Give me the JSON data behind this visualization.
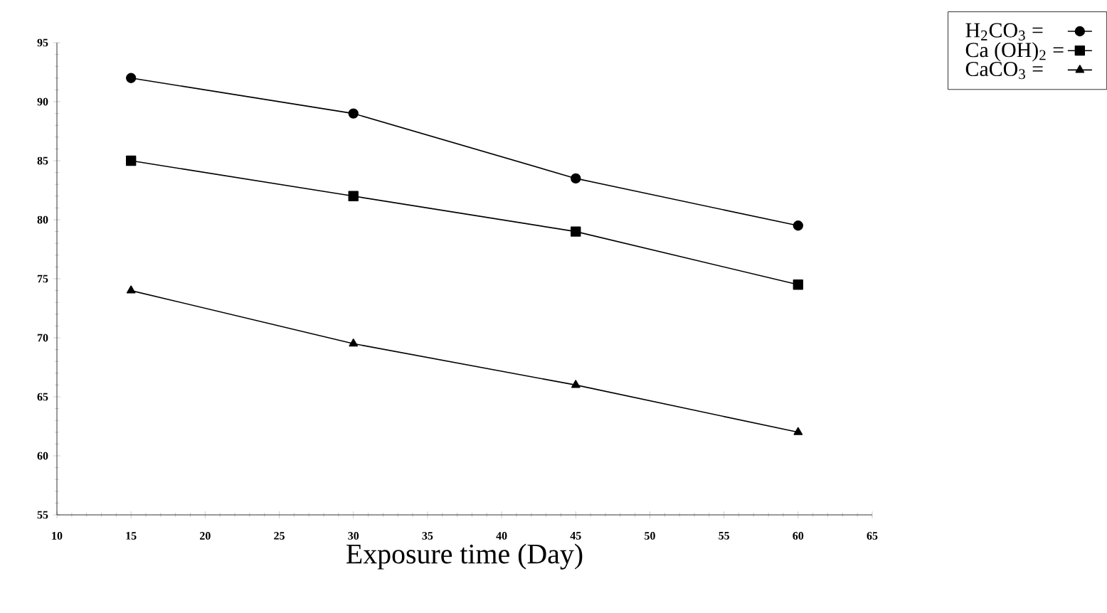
{
  "chart_data": {
    "type": "line",
    "xlabel": "Exposure time (Day)",
    "x": [
      15,
      30,
      45,
      60
    ],
    "series": [
      {
        "name": "H$_{2}$CO$_{3}$ =",
        "color": "#000000",
        "marker": "circle",
        "values": [
          92,
          89,
          83.5,
          79.5
        ]
      },
      {
        "name": "Ca (OH)$_{2}$ =",
        "color": "#000000",
        "marker": "square",
        "values": [
          85,
          82,
          79,
          74.5
        ]
      },
      {
        "name": "CaCO$_{3}$ =",
        "color": "#000000",
        "marker": "triangle",
        "values": [
          74,
          69.5,
          66,
          62
        ]
      }
    ],
    "xlim": [
      10,
      65
    ],
    "xticks": [
      10,
      15,
      20,
      25,
      30,
      35,
      40,
      45,
      50,
      55,
      60,
      65
    ],
    "ylim": [
      55,
      95
    ],
    "yticks": [
      55,
      60,
      65,
      70,
      75,
      80,
      85,
      90,
      95
    ],
    "grid": false,
    "legend": "top right",
    "line_style": "solid"
  }
}
